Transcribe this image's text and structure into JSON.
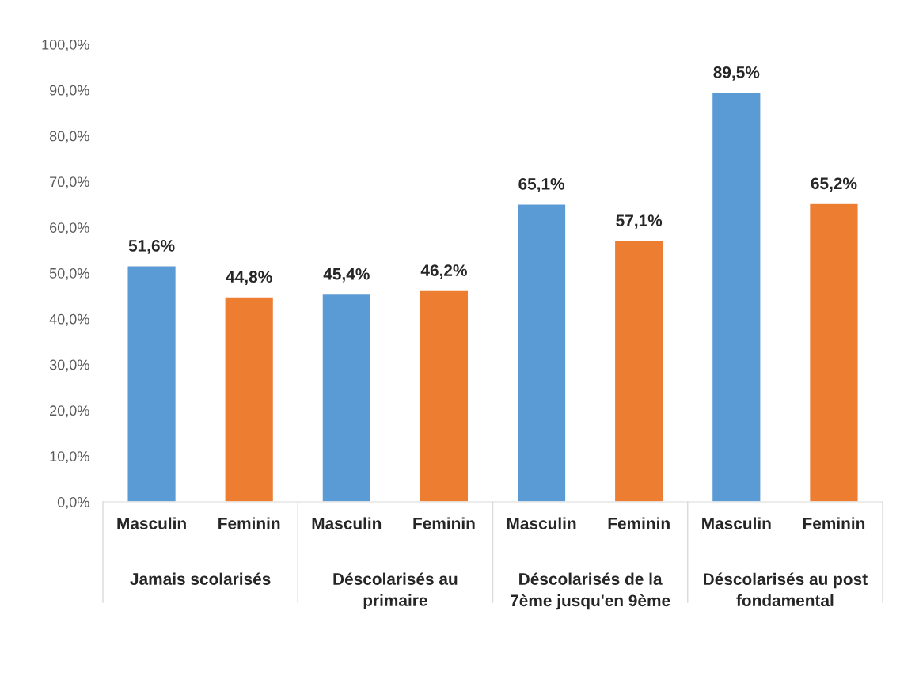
{
  "chart_data": {
    "type": "bar",
    "categories": [
      "Masculin",
      "Feminin",
      "Masculin",
      "Feminin",
      "Masculin",
      "Feminin",
      "Masculin",
      "Feminin"
    ],
    "values": [
      51.6,
      44.8,
      45.4,
      46.2,
      65.1,
      57.1,
      89.5,
      65.2
    ],
    "value_labels": [
      "51,6%",
      "44,8%",
      "45,4%",
      "46,2%",
      "65,1%",
      "57,1%",
      "89,5%",
      "65,2%"
    ],
    "colors": [
      "#5b9bd5",
      "#ed7d31",
      "#5b9bd5",
      "#ed7d31",
      "#5b9bd5",
      "#ed7d31",
      "#5b9bd5",
      "#ed7d31"
    ],
    "annotations": [
      "Jamais scolarisés",
      "Déscolarisés au\nprimaire",
      "Déscolarisés de la\n7ème jusqu'en 9ème",
      "Déscolarisés au post\nfondamental"
    ],
    "ylim": [
      0,
      100
    ],
    "yticks": [
      {
        "value": 0,
        "label": "0,0%"
      },
      {
        "value": 10,
        "label": "10,0%"
      },
      {
        "value": 20,
        "label": "20,0%"
      },
      {
        "value": 30,
        "label": "30,0%"
      },
      {
        "value": 40,
        "label": "40,0%"
      },
      {
        "value": 50,
        "label": "50,0%"
      },
      {
        "value": 60,
        "label": "60,0%"
      },
      {
        "value": 70,
        "label": "70,0%"
      },
      {
        "value": 80,
        "label": "80,0%"
      },
      {
        "value": 90,
        "label": "90,0%"
      },
      {
        "value": 100,
        "label": "100,0%"
      }
    ],
    "grid": false,
    "legend": false
  }
}
